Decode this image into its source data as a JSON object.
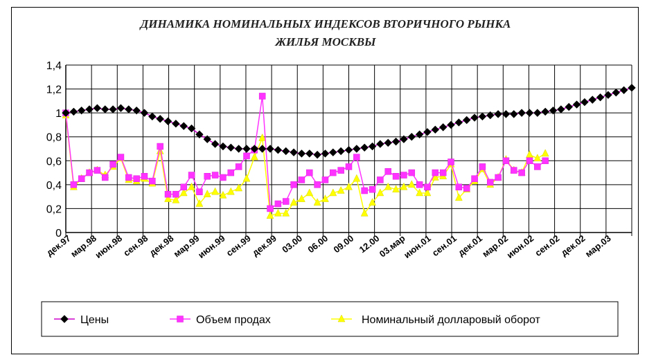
{
  "chart_data": {
    "type": "line",
    "title_line1": "ДИНАМИКА НОМИНАЛЬНЫХ ИНДЕКСОВ  ВТОРИЧНОГО РЫНКА",
    "title_line2": "ЖИЛЬЯ МОСКВЫ",
    "ylim": [
      0,
      1.4
    ],
    "y_ticks": [
      "0",
      "0,2",
      "0,4",
      "0,6",
      "0,8",
      "1",
      "1,2",
      "1,4"
    ],
    "grid": true,
    "legend_position": "bottom",
    "x_tick_labels": [
      "дек.97",
      "мар.98",
      "июн.98",
      "сен.98",
      "дек.98",
      "мар.99",
      "июн.99",
      "сен.99",
      "дек.99",
      "03.00",
      "06.00",
      "09.00",
      "12.00",
      "03.мар",
      "июн.01",
      "сен.01",
      "дек.01",
      "мар.02",
      "июн.02",
      "сен.02",
      "дек.02",
      "мар.03"
    ],
    "series": [
      {
        "name": "Цены",
        "color": "#000000",
        "line_color": "#cc00cc",
        "marker": "diamond",
        "values": [
          1.0,
          1.01,
          1.02,
          1.03,
          1.04,
          1.03,
          1.03,
          1.04,
          1.03,
          1.02,
          1.0,
          0.97,
          0.95,
          0.93,
          0.91,
          0.89,
          0.87,
          0.82,
          0.78,
          0.74,
          0.72,
          0.71,
          0.7,
          0.7,
          0.7,
          0.7,
          0.7,
          0.69,
          0.68,
          0.67,
          0.66,
          0.66,
          0.65,
          0.66,
          0.67,
          0.68,
          0.69,
          0.7,
          0.71,
          0.72,
          0.74,
          0.75,
          0.76,
          0.78,
          0.8,
          0.82,
          0.84,
          0.86,
          0.88,
          0.9,
          0.92,
          0.94,
          0.96,
          0.97,
          0.98,
          0.99,
          0.99,
          0.99,
          1.0,
          1.0,
          1.0,
          1.01,
          1.02,
          1.03,
          1.05,
          1.07,
          1.09,
          1.11,
          1.13,
          1.15,
          1.17,
          1.19,
          1.21
        ]
      },
      {
        "name": "Объем продах",
        "color": "#ff33ff",
        "marker": "square",
        "values": [
          1.0,
          0.4,
          0.45,
          0.5,
          0.52,
          0.46,
          0.57,
          0.63,
          0.46,
          0.45,
          0.47,
          0.43,
          0.72,
          0.32,
          0.32,
          0.38,
          0.48,
          0.34,
          0.47,
          0.48,
          0.46,
          0.5,
          0.55,
          0.64,
          0.69,
          1.14,
          0.2,
          0.24,
          0.26,
          0.4,
          0.44,
          0.5,
          0.4,
          0.44,
          0.5,
          0.52,
          0.55,
          0.63,
          0.35,
          0.36,
          0.44,
          0.51,
          0.47,
          0.48,
          0.5,
          0.4,
          0.38,
          0.5,
          0.5,
          0.59,
          0.38,
          0.37,
          0.45,
          0.55,
          0.42,
          0.46,
          0.6,
          0.52,
          0.5,
          0.6,
          0.55,
          0.6
        ]
      },
      {
        "name": "Номинальный долларовый оборот",
        "color": "#ffff00",
        "marker": "triangle",
        "values": [
          0.98,
          0.38,
          0.45,
          0.5,
          0.52,
          0.48,
          0.55,
          0.62,
          0.44,
          0.43,
          0.45,
          0.41,
          0.68,
          0.28,
          0.27,
          0.33,
          0.38,
          0.24,
          0.32,
          0.34,
          0.31,
          0.34,
          0.37,
          0.45,
          0.63,
          0.79,
          0.14,
          0.16,
          0.16,
          0.25,
          0.28,
          0.33,
          0.25,
          0.28,
          0.33,
          0.35,
          0.38,
          0.45,
          0.16,
          0.25,
          0.33,
          0.38,
          0.36,
          0.38,
          0.4,
          0.33,
          0.33,
          0.46,
          0.47,
          0.57,
          0.29,
          0.36,
          0.43,
          0.53,
          0.4,
          0.46,
          0.61,
          0.52,
          0.5,
          0.65,
          0.62,
          0.66
        ]
      }
    ]
  }
}
